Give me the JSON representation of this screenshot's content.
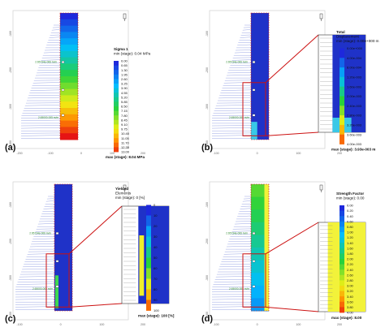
{
  "chart_data": [
    {
      "type": "heatmap",
      "panel_label": "(a)",
      "legend": {
        "title_lines": [
          "Sigma 1",
          "min (stage): 0.04 MPa"
        ],
        "levels": [
          "0.00",
          "0.65",
          "1.30",
          "1.95",
          "2.60",
          "3.25",
          "3.90",
          "4.55",
          "5.20",
          "5.85",
          "6.50",
          "7.15",
          "7.80",
          "8.45",
          "9.10",
          "9.75",
          "10.40",
          "11.05",
          "11.70",
          "12.35",
          "13.00"
        ],
        "footer": "max (stage): 8.04 MPa"
      },
      "x_ticks": [
        "-200",
        "-100",
        "0",
        "100",
        "200"
      ],
      "y_ticks": [
        "-100",
        "-200",
        "-300",
        "-400"
      ],
      "point_label": "2.65734e-006 m/m",
      "point_label_lower": "2.65000-005 m/m"
    },
    {
      "type": "heatmap",
      "panel_label": "(b)",
      "legend": {
        "title_lines": [
          "Total",
          "Displacement",
          "min (stage): 0.00e+000 m"
        ],
        "levels": [
          "0.00e+000",
          "4.00e-004",
          "8.00e-004",
          "1.20e-003",
          "1.60e-003",
          "2.00e-003",
          "2.40e-003",
          "2.80e-003",
          "3.20e-003",
          "3.60e-003",
          "4.00e-003"
        ],
        "footer": "max (stage): 3.93e-003 m"
      },
      "x_ticks": [
        "-100",
        "0",
        "100",
        "200"
      ],
      "y_ticks": [
        "-100",
        "-200",
        "-300",
        "-400"
      ],
      "point_label": "2.65734e-006 m/m",
      "point_label_lower": "2.65000-005 m/m"
    },
    {
      "type": "heatmap",
      "panel_label": "(c)",
      "legend": {
        "title_lines": [
          "Yielded",
          "Elements",
          "min (stage): 0 [%]"
        ],
        "levels": [
          "0",
          "10",
          "20",
          "30",
          "40",
          "50",
          "60",
          "70",
          "80",
          "90",
          "100"
        ],
        "footer": "max (stage): 100 [%]"
      },
      "x_ticks": [
        "-100",
        "0",
        "100",
        "200"
      ],
      "y_ticks": [
        "-100",
        "-200",
        "-300",
        "-400"
      ],
      "point_label": "2.65734e-006 m/m",
      "point_label_lower": "2.65000-005 m/m"
    },
    {
      "type": "heatmap",
      "panel_label": "(d)",
      "legend": {
        "title_lines": [
          "Strength Factor",
          "min (stage): 0.00"
        ],
        "levels": [
          "0.00",
          "0.20",
          "0.40",
          "0.60",
          "0.80",
          "1.00",
          "1.20",
          "1.40",
          "1.60",
          "1.80",
          "2.00",
          "2.20",
          "2.40",
          "2.60",
          "2.80",
          "3.00",
          "3.20",
          "3.40",
          "3.60",
          "3.80",
          "4.00"
        ],
        "footer": "max (stage): 8.00"
      },
      "x_ticks": [
        "-100",
        "0",
        "100",
        "200"
      ],
      "y_ticks": [
        "-100",
        "-200",
        "-300",
        "-400"
      ],
      "point_label": "2.65734e-006 m/m",
      "point_label_lower": "2.65000-005 m/m"
    }
  ]
}
